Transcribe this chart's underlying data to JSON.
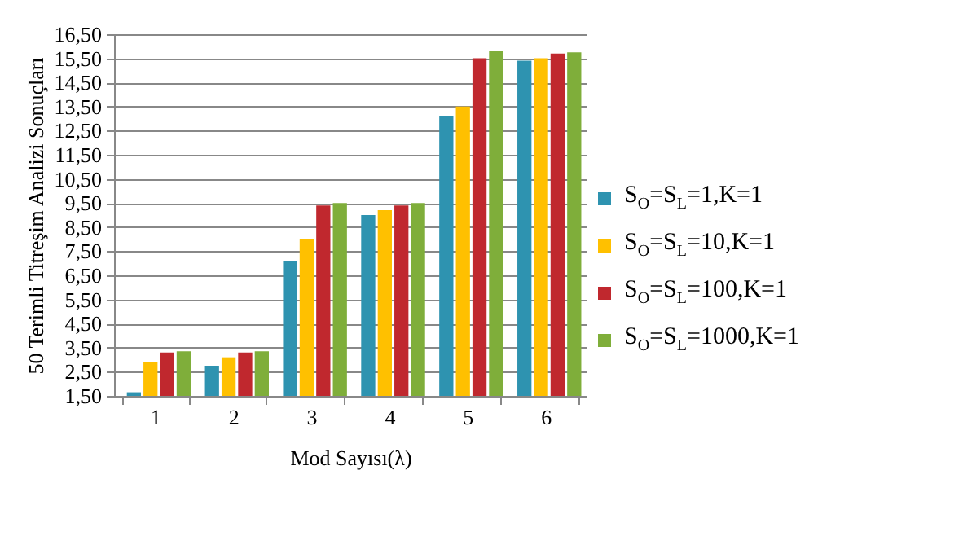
{
  "chart_data": {
    "type": "bar",
    "xlabel": "Mod Sayısı(λ)",
    "ylabel": "50 Terimli Titreşim Analizi Sonuçları",
    "categories": [
      "1",
      "2",
      "3",
      "4",
      "5",
      "6"
    ],
    "series": [
      {
        "name": "S$_{O}$=S$_{L}$=1,K=1",
        "color": "#2e93b0",
        "values": [
          1.65,
          2.75,
          7.1,
          9.0,
          13.1,
          15.4
        ]
      },
      {
        "name": "S$_{O}$=S$_{L}$=10,K=1",
        "color": "#ffc000",
        "values": [
          2.9,
          3.1,
          8.0,
          9.2,
          13.5,
          15.5
        ]
      },
      {
        "name": "S$_{O}$=S$_{L}$=100,K=1",
        "color": "#c0282e",
        "values": [
          3.3,
          3.3,
          9.4,
          9.4,
          15.5,
          15.7
        ]
      },
      {
        "name": "S$_{O}$=S$_{L}$=1000,K=1",
        "color": "#7fae3a",
        "values": [
          3.35,
          3.35,
          9.5,
          9.5,
          15.8,
          15.75
        ]
      }
    ],
    "ylim": [
      1.5,
      16.5
    ],
    "yticks": [
      {
        "value": 1.5,
        "label": "1,50"
      },
      {
        "value": 2.5,
        "label": "2,50"
      },
      {
        "value": 3.5,
        "label": "3,50"
      },
      {
        "value": 4.5,
        "label": "4,50"
      },
      {
        "value": 5.5,
        "label": "5,50"
      },
      {
        "value": 6.5,
        "label": "6,50"
      },
      {
        "value": 7.5,
        "label": "7,50"
      },
      {
        "value": 8.5,
        "label": "8,50"
      },
      {
        "value": 9.5,
        "label": "9,50"
      },
      {
        "value": 10.5,
        "label": "10,50"
      },
      {
        "value": 11.5,
        "label": "11,50"
      },
      {
        "value": 12.5,
        "label": "12,50"
      },
      {
        "value": 13.5,
        "label": "13,50"
      },
      {
        "value": 14.5,
        "label": "14,50"
      },
      {
        "value": 15.5,
        "label": "15,50"
      },
      {
        "value": 16.5,
        "label": "16,50"
      }
    ],
    "grid": "y",
    "legend": "right"
  }
}
